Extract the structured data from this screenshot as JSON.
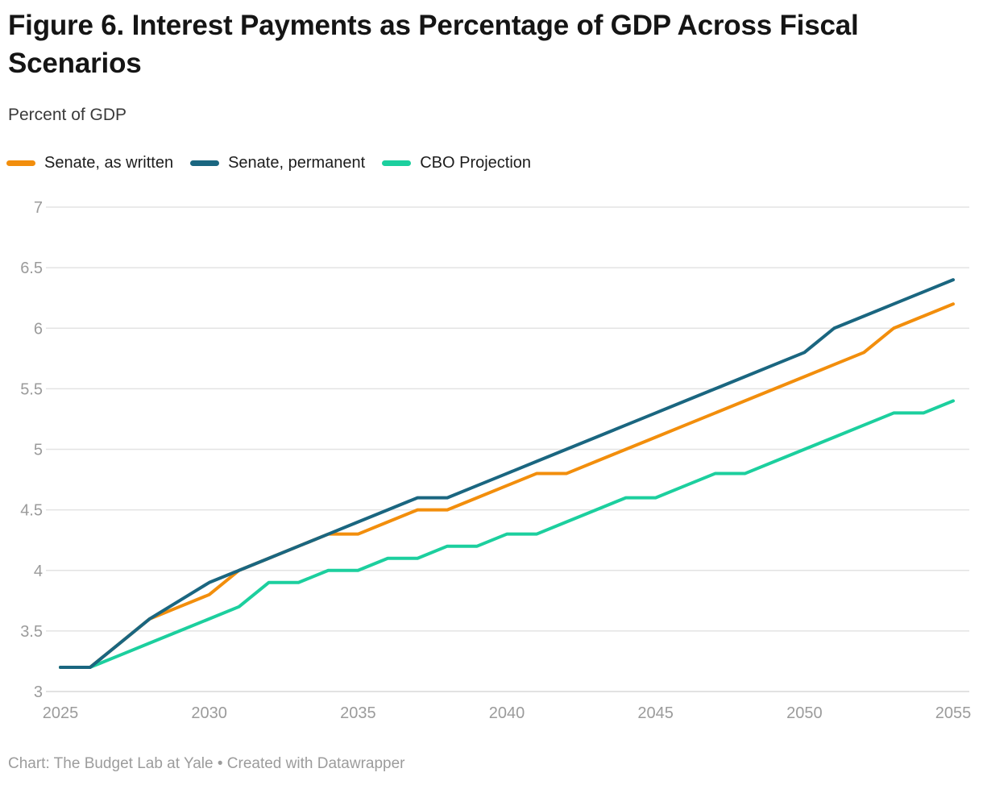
{
  "header": {
    "title": "Figure 6. Interest Payments as Percentage of GDP Across Fiscal Scenarios",
    "subtitle": "Percent of GDP"
  },
  "footer": {
    "attribution": "Chart: The Budget Lab at Yale • Created with Datawrapper"
  },
  "colors": {
    "background": "#ffffff",
    "title_text": "#151515",
    "subtitle_text": "#3a3a3a",
    "legend_text": "#1d1d1d",
    "axis_text": "#9b9b9b",
    "gridline": "#e3e3e3",
    "baseline": "#d9d9d9",
    "orange": "#F28E0C",
    "dark_teal": "#1A6680",
    "mint_green": "#1CCF9E"
  },
  "chart_data": {
    "type": "line",
    "title": "Figure 6. Interest Payments as Percentage of GDP Across Fiscal Scenarios",
    "ylabel": "Percent of GDP",
    "xlabel": "",
    "grid": true,
    "legend_position": "top",
    "ylim": [
      3,
      7
    ],
    "xlim": [
      2025,
      2055
    ],
    "yticks": [
      3,
      3.5,
      4,
      4.5,
      5,
      5.5,
      6,
      6.5,
      7
    ],
    "xticks": [
      2025,
      2030,
      2035,
      2040,
      2045,
      2050,
      2055
    ],
    "x": [
      2025,
      2026,
      2027,
      2028,
      2029,
      2030,
      2031,
      2032,
      2033,
      2034,
      2035,
      2036,
      2037,
      2038,
      2039,
      2040,
      2041,
      2042,
      2043,
      2044,
      2045,
      2046,
      2047,
      2048,
      2049,
      2050,
      2051,
      2052,
      2053,
      2054,
      2055
    ],
    "draw_order": [
      0,
      2,
      1
    ],
    "series": [
      {
        "name": "Senate, as written",
        "color": "#F28E0C",
        "values": [
          3.2,
          3.2,
          3.4,
          3.6,
          3.7,
          3.8,
          4.0,
          4.1,
          4.2,
          4.3,
          4.3,
          4.4,
          4.5,
          4.5,
          4.6,
          4.7,
          4.8,
          4.8,
          4.9,
          5.0,
          5.1,
          5.2,
          5.3,
          5.4,
          5.5,
          5.6,
          5.7,
          5.8,
          6.0,
          6.1,
          6.2
        ]
      },
      {
        "name": "Senate, permanent",
        "color": "#1A6680",
        "values": [
          3.2,
          3.2,
          3.4,
          3.6,
          3.75,
          3.9,
          4.0,
          4.1,
          4.2,
          4.3,
          4.4,
          4.5,
          4.6,
          4.6,
          4.7,
          4.8,
          4.9,
          5.0,
          5.1,
          5.2,
          5.3,
          5.4,
          5.5,
          5.6,
          5.7,
          5.8,
          6.0,
          6.1,
          6.2,
          6.3,
          6.4
        ]
      },
      {
        "name": "CBO Projection",
        "color": "#1CCF9E",
        "values": [
          3.2,
          3.2,
          3.3,
          3.4,
          3.5,
          3.6,
          3.7,
          3.9,
          3.9,
          4.0,
          4.0,
          4.1,
          4.1,
          4.2,
          4.2,
          4.3,
          4.3,
          4.4,
          4.5,
          4.6,
          4.6,
          4.7,
          4.8,
          4.8,
          4.9,
          5.0,
          5.1,
          5.2,
          5.3,
          5.3,
          5.4
        ]
      }
    ]
  }
}
